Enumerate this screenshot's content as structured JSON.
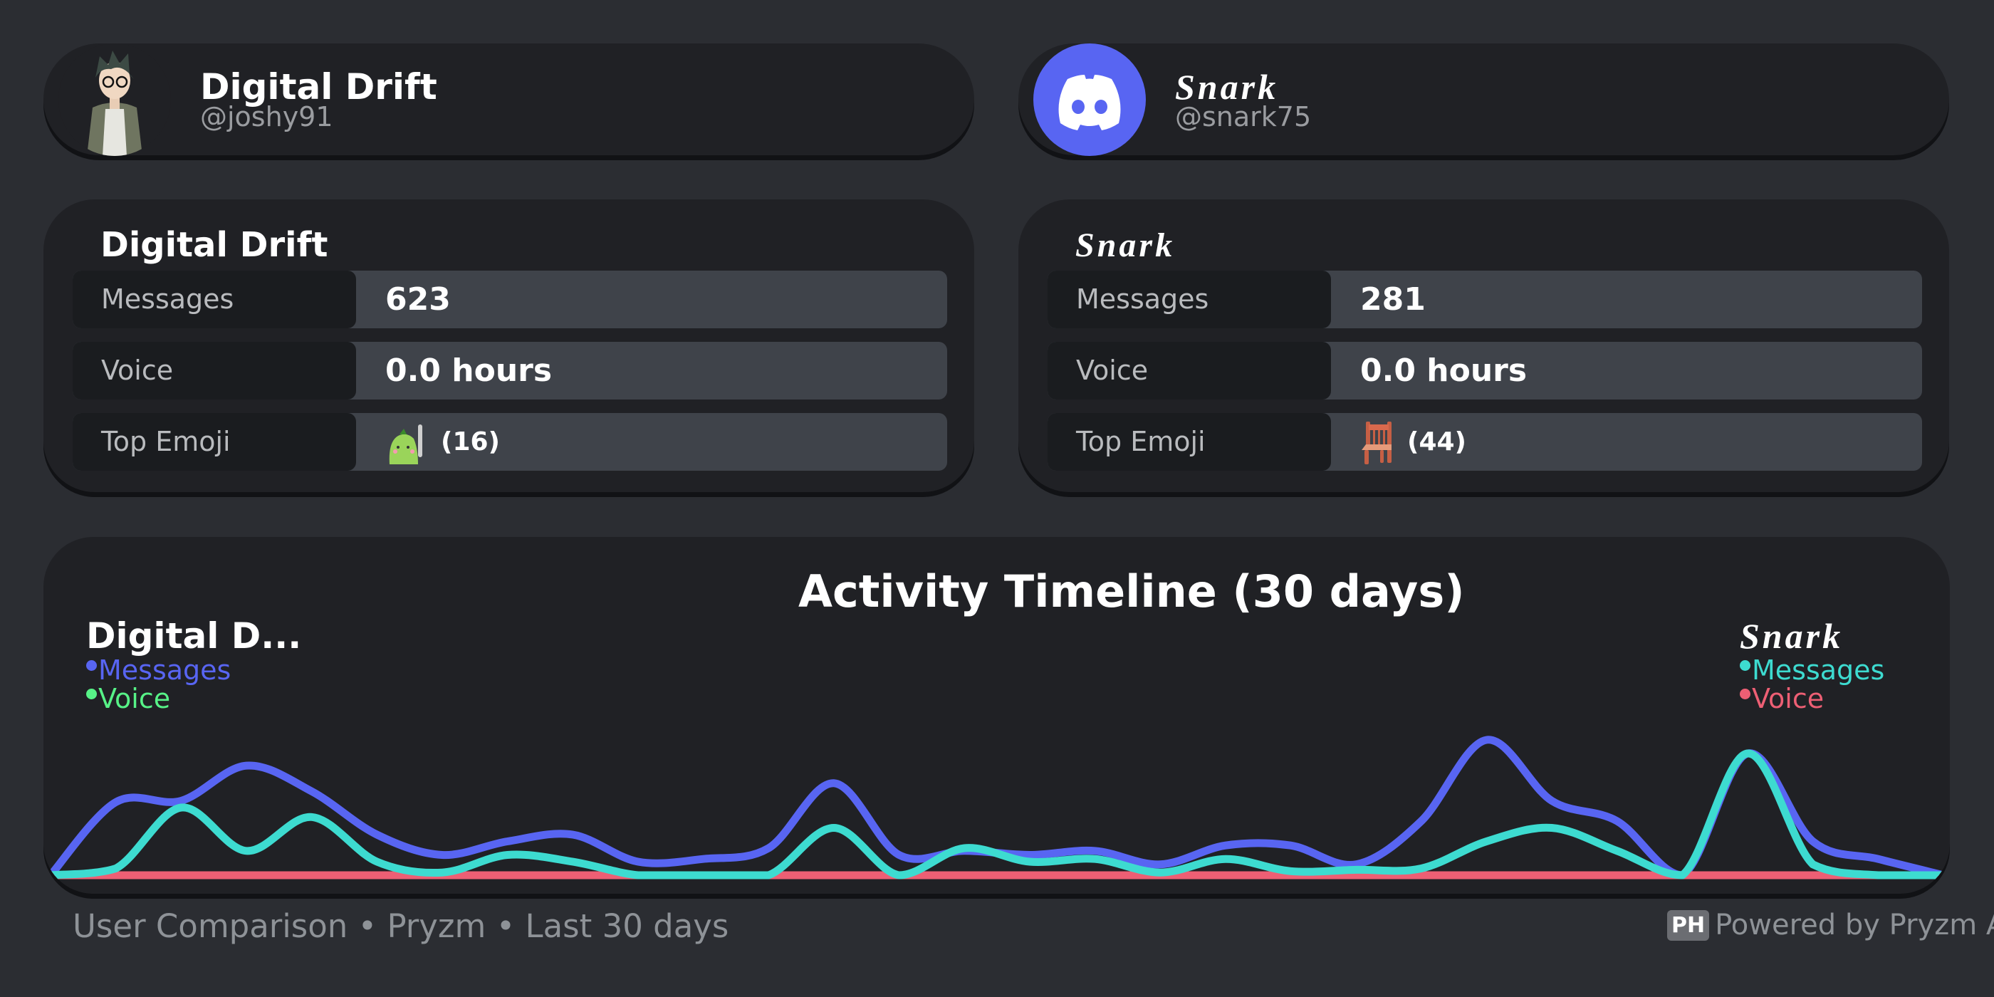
{
  "users": [
    {
      "name": "Digital Drift",
      "handle": "@joshy91",
      "avatar": "anime-character-avatar",
      "stats": {
        "messages_label": "Messages",
        "messages": "623",
        "voice_label": "Voice",
        "voice": "0.0 hours",
        "emoji_label": "Top Emoji",
        "emoji_icon": "green-blob-smoking-emoji",
        "emoji_count": "(16)"
      }
    },
    {
      "name": "Snark",
      "handle": "@snark75",
      "avatar": "discord-logo-icon",
      "stats": {
        "messages_label": "Messages",
        "messages": "281",
        "voice_label": "Voice",
        "voice": "0.0 hours",
        "emoji_label": "Top Emoji",
        "emoji_icon": "chair-emoji",
        "emoji_count": "(44)"
      }
    }
  ],
  "colors": {
    "page_bg": "#2b2d32",
    "card_bg": "#202125",
    "row_bg": "#3f434a",
    "label_bg": "#1a1c1f",
    "discord": "#5865f2",
    "user1_messages": "#5865f2",
    "user1_voice": "#57f287",
    "user2_messages": "#3ddbd0",
    "user2_voice": "#ed5f74"
  },
  "chart_data": {
    "type": "line",
    "title": "Activity Timeline (30 days)",
    "x": [
      1,
      2,
      3,
      4,
      5,
      6,
      7,
      8,
      9,
      10,
      11,
      12,
      13,
      14,
      15,
      16,
      17,
      18,
      19,
      20,
      21,
      22,
      23,
      24,
      25,
      26,
      27,
      28,
      29,
      30
    ],
    "legends": [
      {
        "user": "Digital D...",
        "items": [
          "Messages",
          "Voice"
        ]
      },
      {
        "user": "Snark",
        "items": [
          "Messages",
          "Voice"
        ]
      }
    ],
    "series": [
      {
        "name": "Messages",
        "user": "Digital Drift",
        "color": "#5865f2",
        "values": [
          0,
          54,
          55,
          81,
          62,
          30,
          15,
          25,
          30,
          10,
          12,
          20,
          68,
          15,
          18,
          15,
          18,
          8,
          22,
          22,
          8,
          40,
          100,
          55,
          40,
          0,
          90,
          25,
          12,
          0
        ]
      },
      {
        "name": "Voice",
        "user": "Digital Drift",
        "color": "#57f287",
        "values": [
          0,
          0,
          0,
          0,
          0,
          0,
          0,
          0,
          0,
          0,
          0,
          0,
          0,
          0,
          0,
          0,
          0,
          0,
          0,
          0,
          0,
          0,
          0,
          0,
          0,
          0,
          0,
          0,
          0,
          0
        ]
      },
      {
        "name": "Voice",
        "user": "Snark",
        "color": "#ed5f74",
        "values": [
          0,
          0,
          0,
          0,
          0,
          0,
          0,
          0,
          0,
          0,
          0,
          0,
          0,
          0,
          0,
          0,
          0,
          0,
          0,
          0,
          0,
          0,
          0,
          0,
          0,
          0,
          0,
          0,
          0,
          0
        ]
      },
      {
        "name": "Messages",
        "user": "Snark",
        "color": "#3ddbd0",
        "values": [
          0,
          5,
          50,
          18,
          43,
          10,
          2,
          15,
          10,
          0,
          0,
          0,
          35,
          0,
          20,
          10,
          12,
          2,
          12,
          3,
          4,
          5,
          25,
          35,
          18,
          0,
          90,
          8,
          0,
          0
        ]
      }
    ],
    "ylim": [
      0,
      105
    ],
    "grid": false
  },
  "footer": {
    "left": "User Comparison • Pryzm • Last 30 days",
    "badge": "PH",
    "right": "Powered by Pryzm Ap"
  }
}
